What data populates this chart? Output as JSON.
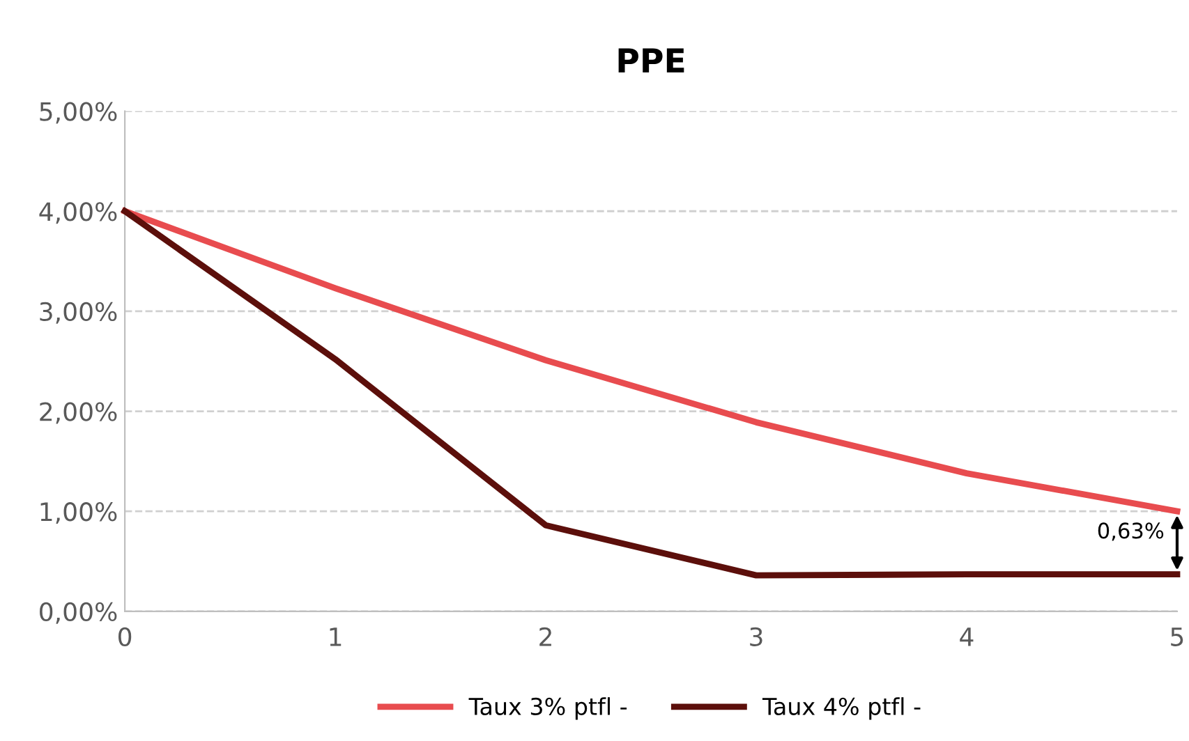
{
  "chart_data": {
    "type": "line",
    "title": "PPE",
    "x": [
      0,
      1,
      2,
      3,
      4,
      5
    ],
    "series": [
      {
        "name": "Taux 3% ptfl -",
        "color": "#e84c4f",
        "values": [
          4.0,
          3.23,
          2.51,
          1.89,
          1.38,
          1.0
        ]
      },
      {
        "name": "Taux 4% ptfl -",
        "color": "#5c0f0b",
        "values": [
          4.0,
          2.52,
          0.86,
          0.36,
          0.37,
          0.37
        ]
      }
    ],
    "xlim": [
      0,
      5
    ],
    "xticks": [
      0,
      1,
      2,
      3,
      4,
      5
    ],
    "ylim": [
      0,
      5
    ],
    "yticks": [
      {
        "value": 0,
        "label": "0,00%"
      },
      {
        "value": 1,
        "label": "1,00%"
      },
      {
        "value": 2,
        "label": "2,00%"
      },
      {
        "value": 3,
        "label": "3,00%"
      },
      {
        "value": 4,
        "label": "4,00%"
      },
      {
        "value": 5,
        "label": "5,00%"
      }
    ],
    "grid": "y",
    "legend": "bottom",
    "marker": "none",
    "line_style": "solid",
    "annotations": [
      "0,63%"
    ]
  }
}
